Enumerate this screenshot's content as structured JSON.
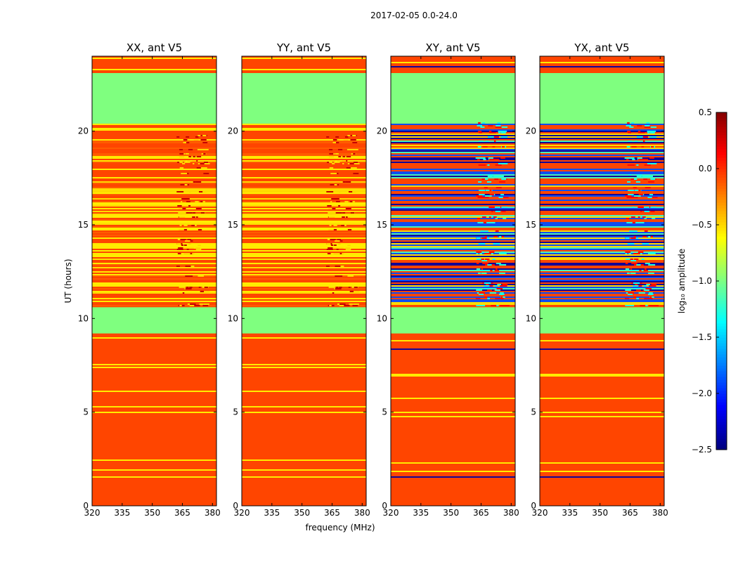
{
  "chart_data": {
    "type": "heatmap",
    "suptitle": "2017-02-05 0.0-24.0",
    "xlabel": "frequency (MHz)",
    "ylabel": "UT (hours)",
    "xlim": [
      320,
      382
    ],
    "ylim": [
      0,
      24
    ],
    "xticks": [
      320,
      335,
      350,
      365,
      380
    ],
    "yticks": [
      0,
      5,
      10,
      15,
      20
    ],
    "colorbar": {
      "label": "log₁₀ amplitude",
      "range": [
        -2.5,
        0.5
      ],
      "ticks": [
        "0.5",
        "0.0",
        "−0.5",
        "−1.0",
        "−1.5",
        "−2.0",
        "−2.5"
      ],
      "tick_values": [
        0.5,
        0.0,
        -0.5,
        -1.0,
        -1.5,
        -2.0,
        -2.5
      ],
      "colormap": [
        "#00007f",
        "#0000ff",
        "#007fff",
        "#00ffff",
        "#7fff7f",
        "#ffff00",
        "#ff7f00",
        "#ff0000",
        "#7f0000"
      ]
    },
    "panels": [
      {
        "title": "XX, ant V5",
        "kind": "parallel"
      },
      {
        "title": "YY, ant V5",
        "kind": "parallel"
      },
      {
        "title": "XY, ant V5",
        "kind": "cross"
      },
      {
        "title": "YX, ant V5",
        "kind": "cross"
      }
    ],
    "flagged_time_ranges_hours": [
      [
        9.2,
        10.6
      ],
      [
        20.4,
        23.1
      ]
    ],
    "rfi_band_mhz": [
      362,
      376
    ],
    "base_log_amplitude": {
      "parallel": -0.1,
      "cross": -0.1
    },
    "background_color": "#ff4500",
    "flagged_color": "#7fff7f"
  }
}
